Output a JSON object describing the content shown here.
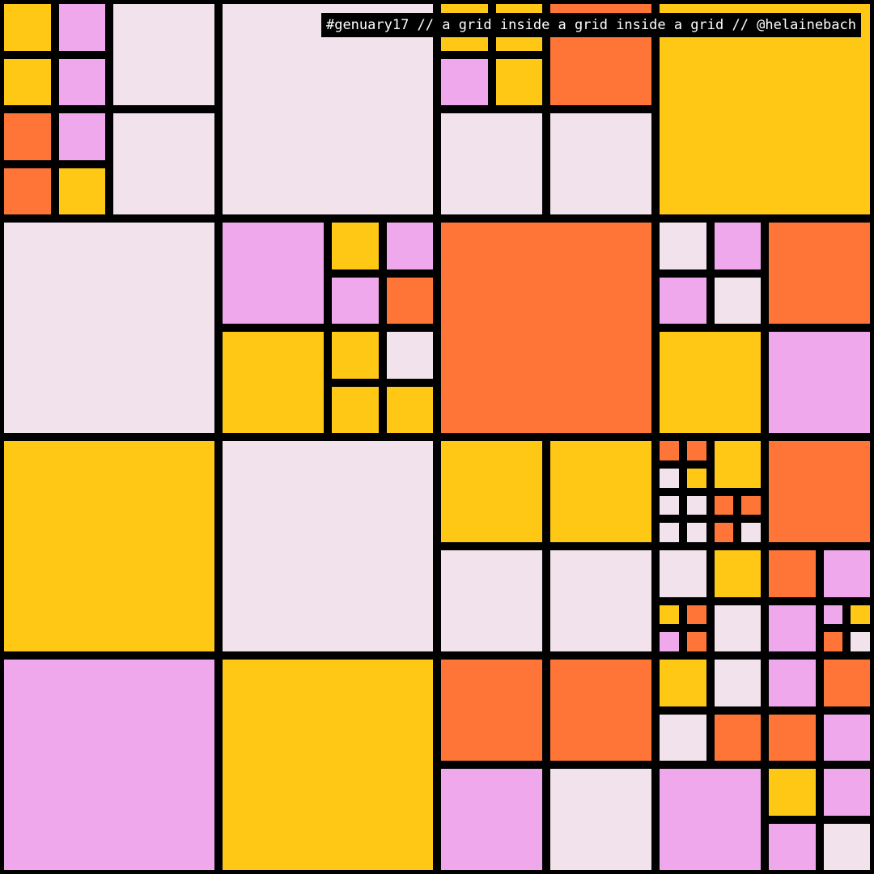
{
  "caption": "#genuary17 // a grid inside a grid inside a grid // @helainebach",
  "palette": {
    "background": "#000000",
    "Y": "#FFC815",
    "P": "#F0A8EC",
    "W": "#F2E2EC",
    "O": "#FF7538"
  },
  "grid": [
    [
      [
        [
          "Y",
          "P",
          "Y",
          "P"
        ],
        "W",
        [
          "O",
          "P",
          "O",
          "Y"
        ],
        "W"
      ],
      "W",
      [
        [
          "Y",
          "Y",
          "P",
          "Y"
        ],
        "O",
        "W",
        "W"
      ],
      "Y"
    ],
    [
      "W",
      [
        "P",
        [
          "Y",
          "P",
          "P",
          "O"
        ],
        "Y",
        [
          "Y",
          "W",
          "Y",
          "Y"
        ]
      ],
      "O",
      [
        [
          "W",
          "P",
          "P",
          "W"
        ],
        "O",
        "Y",
        "P"
      ]
    ],
    [
      "Y",
      "W",
      [
        "Y",
        "Y",
        "W",
        "W"
      ],
      [
        [
          [
            "O",
            "O",
            "W",
            "Y"
          ],
          "Y",
          [
            "W",
            "W",
            "W",
            "W"
          ],
          [
            "O",
            "O",
            "O",
            "W"
          ]
        ],
        "O",
        [
          "W",
          "Y",
          [
            "Y",
            "O",
            "P",
            "O"
          ],
          "W"
        ],
        [
          "O",
          "P",
          "P",
          [
            "P",
            "Y",
            "O",
            "W"
          ]
        ]
      ]
    ],
    [
      "P",
      "Y",
      [
        "O",
        "O",
        "P",
        "W"
      ],
      [
        [
          "Y",
          "W",
          "W",
          "O"
        ],
        [
          "P",
          "O",
          "O",
          "P"
        ],
        "P",
        [
          "Y",
          "P",
          "P",
          "W"
        ]
      ]
    ]
  ]
}
